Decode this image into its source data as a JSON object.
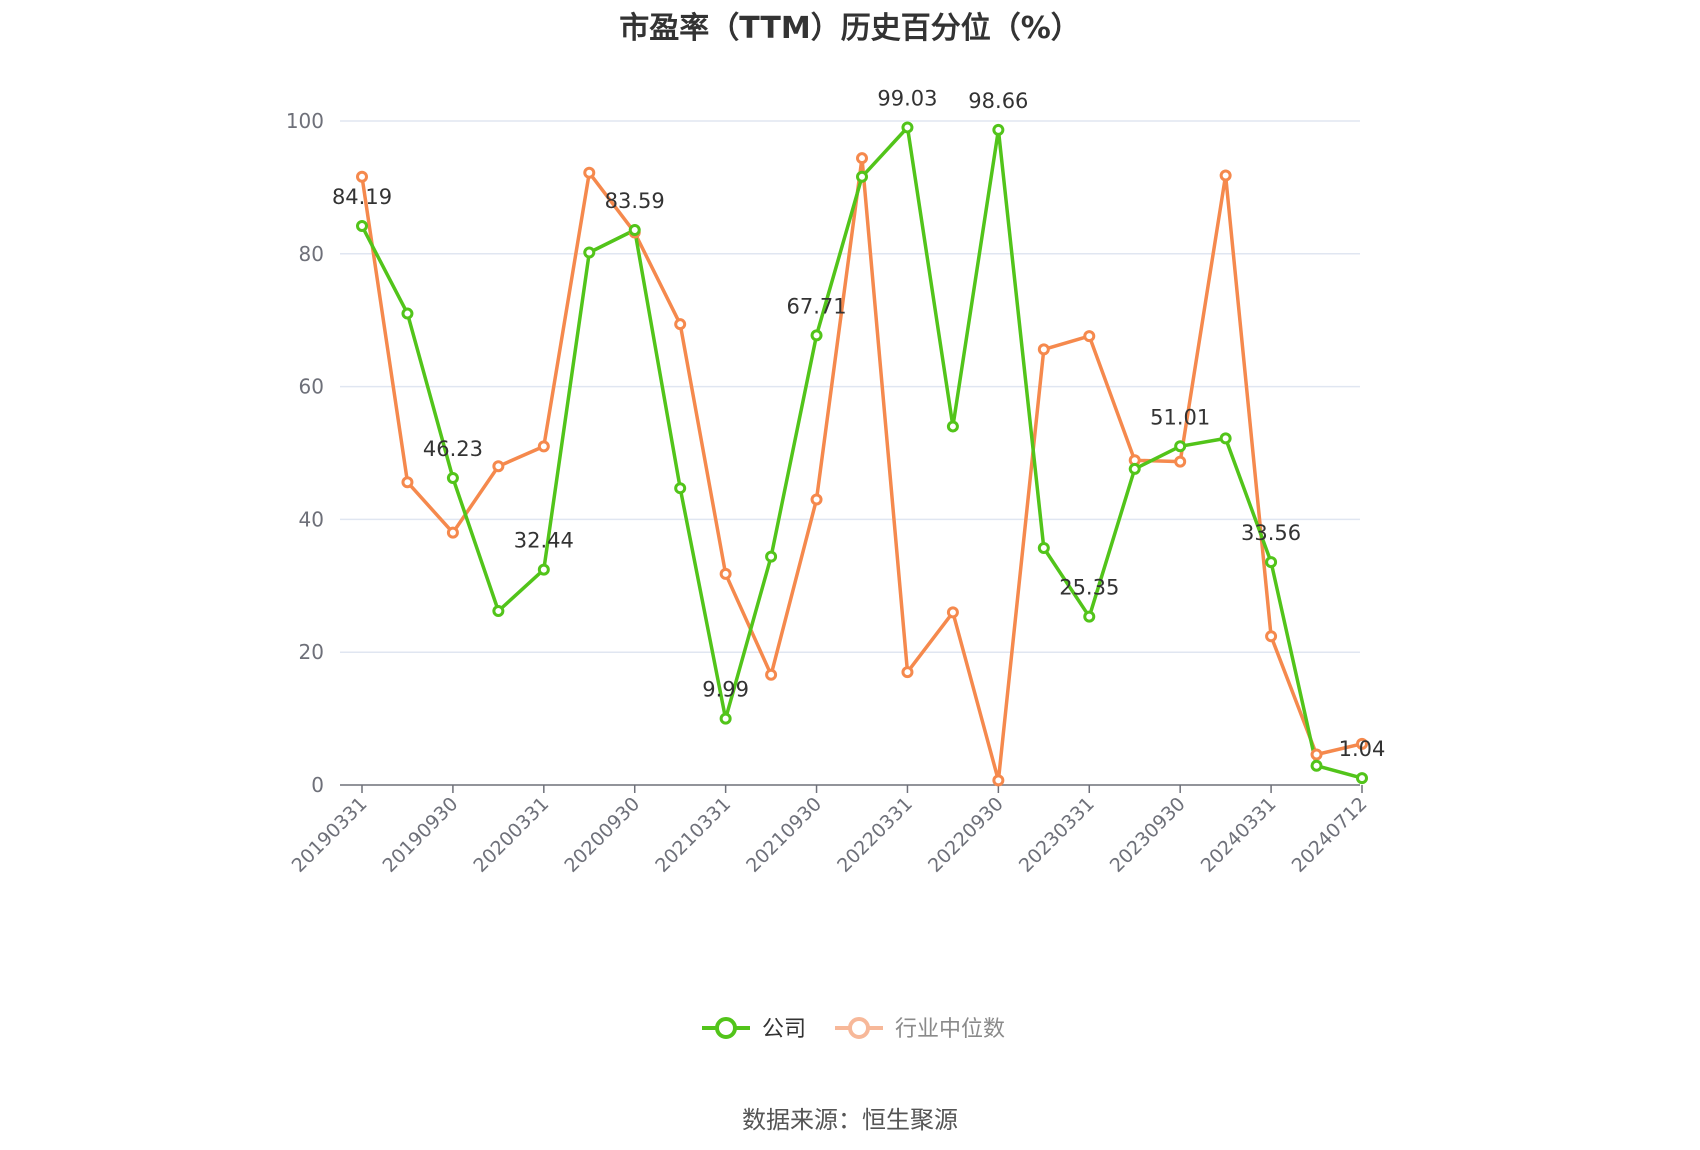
{
  "chart_data": {
    "type": "line",
    "title": "市盈率（TTM）历史百分位（%）",
    "source": "数据来源：恒生聚源",
    "ylim": [
      0,
      100
    ],
    "yticks": [
      0,
      20,
      40,
      60,
      80,
      100
    ],
    "grid": true,
    "legend_position": "bottom",
    "x": [
      "20190331",
      "20190630",
      "20190930",
      "20191231",
      "20200331",
      "20200630",
      "20200930",
      "20201231",
      "20210331",
      "20210630",
      "20210930",
      "20211231",
      "20220331",
      "20220630",
      "20220930",
      "20221231",
      "20230331",
      "20230630",
      "20230930",
      "20231231",
      "20240331",
      "20240630",
      "20240712"
    ],
    "x_tick_labels": [
      "20190331",
      "20190930",
      "20200331",
      "20200930",
      "20210331",
      "20210930",
      "20220331",
      "20220930",
      "20230331",
      "20230930",
      "20240331",
      "20240712"
    ],
    "series": [
      {
        "name": "公司",
        "color": "#52c41a",
        "values": [
          84.19,
          71,
          46.23,
          26.2,
          32.44,
          80.2,
          83.59,
          44.7,
          9.99,
          34.4,
          67.71,
          91.6,
          99.03,
          54.0,
          98.66,
          35.7,
          25.35,
          47.6,
          51.01,
          52.2,
          33.56,
          2.9,
          1.04
        ],
        "labels": {
          "0": "84.19",
          "2": "46.23",
          "4": "32.44",
          "6": "83.59",
          "8": "9.99",
          "10": "67.71",
          "12": "99.03",
          "14": "98.66",
          "16": "25.35",
          "18": "51.01",
          "20": "33.56",
          "22": "1.04"
        }
      },
      {
        "name": "行业中位数",
        "color": "#f5894d",
        "values": [
          91.6,
          45.6,
          38.0,
          48.0,
          51.0,
          92.2,
          83.2,
          69.4,
          31.8,
          16.6,
          43.0,
          94.4,
          17.0,
          26.0,
          0.7,
          65.6,
          67.6,
          48.9,
          48.7,
          91.8,
          22.4,
          4.6,
          6.2
        ]
      }
    ]
  }
}
